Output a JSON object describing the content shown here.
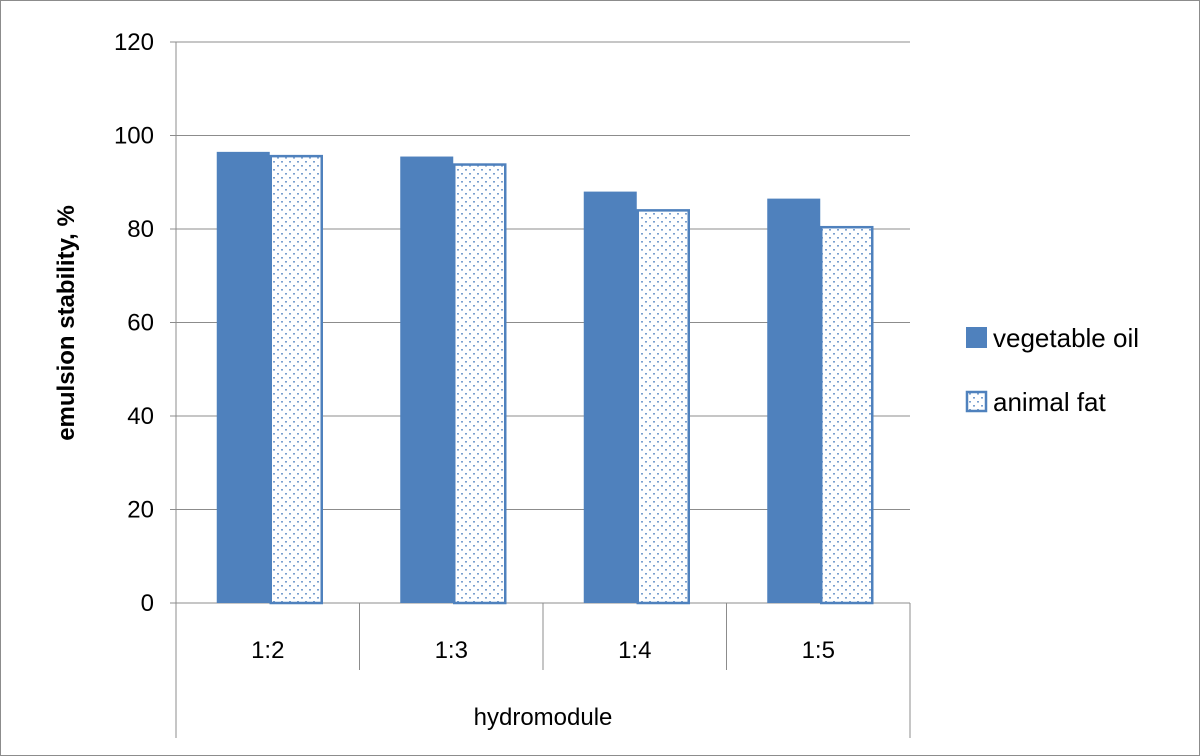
{
  "chart_data": {
    "type": "bar",
    "title": "",
    "xlabel": "hydromodule",
    "ylabel": "emulsion stability, %",
    "ylim": [
      0,
      120
    ],
    "yticks": [
      0,
      20,
      40,
      60,
      80,
      100,
      120
    ],
    "grid": true,
    "legend_position": "right",
    "categories": [
      "1:2",
      "1:3",
      "1:4",
      "1:5"
    ],
    "series": [
      {
        "name": "vegetable oil",
        "values": [
          96.5,
          95.5,
          88,
          86.5
        ],
        "color": "#4f81bd",
        "pattern": "solid"
      },
      {
        "name": "animal fat",
        "values": [
          95.8,
          94,
          84.2,
          80.6
        ],
        "color": "#4f81bd",
        "pattern": "dotted"
      }
    ]
  }
}
